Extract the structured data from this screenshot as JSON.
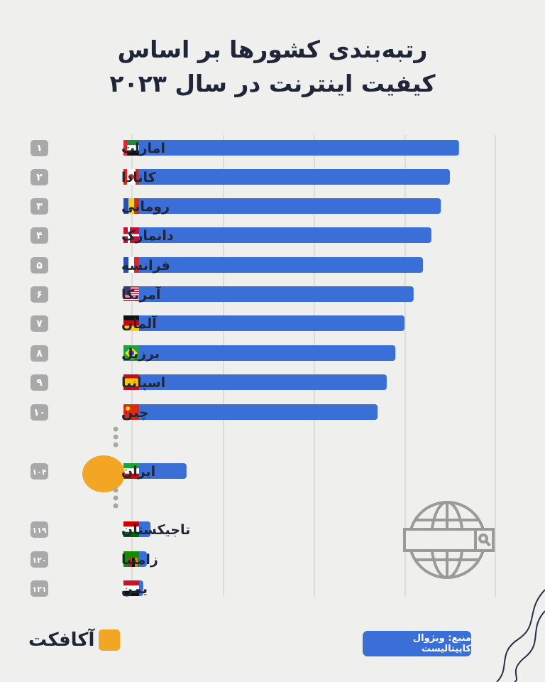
{
  "header": {
    "title_line1": "رتبه‌بندی کشورها بر اساس",
    "title_line2": "کیفیت اینترنت در سال ۲۰۲۳"
  },
  "footer": {
    "source": "منبع: ویژوال کاپیتالیست",
    "logo": "آکافکت"
  },
  "colors": {
    "bar": "#3a6fd8",
    "highlight": "#f2a623",
    "rank_badge": "#a9a9a9",
    "text": "#1f2638"
  },
  "chart_data": {
    "type": "bar",
    "orientation": "horizontal",
    "title": "رتبه‌بندی کشورها بر اساس کیفیت اینترنت در سال ۲۰۲۳",
    "grid": true,
    "value_note": "relative bar length, no axis values printed",
    "highlight": "ایران",
    "rows": [
      {
        "rank": "۱",
        "country": "امارات",
        "flag": "uae",
        "value": 90.0
      },
      {
        "rank": "۲",
        "country": "کانادا",
        "flag": "canada",
        "value": 87.5
      },
      {
        "rank": "۳",
        "country": "رومانی",
        "flag": "romania",
        "value": 85.0
      },
      {
        "rank": "۴",
        "country": "دانمارک",
        "flag": "denmark",
        "value": 82.4
      },
      {
        "rank": "۵",
        "country": "فرانسه",
        "flag": "france",
        "value": 80.1
      },
      {
        "rank": "۶",
        "country": "آمریکا",
        "flag": "usa",
        "value": 77.5
      },
      {
        "rank": "۷",
        "country": "آلمان",
        "flag": "germany",
        "value": 75.0
      },
      {
        "rank": "۸",
        "country": "برزیل",
        "flag": "brazil",
        "value": 72.5
      },
      {
        "rank": "۹",
        "country": "اسپانیا",
        "flag": "spain",
        "value": 70.1
      },
      {
        "rank": "۱۰",
        "country": "چین",
        "flag": "china",
        "value": 67.6
      },
      {
        "rank": "۱۰۴",
        "country": "ایران",
        "flag": "iran",
        "value": 15.0
      },
      {
        "rank": "۱۱۹",
        "country": "تاجیکستان",
        "flag": "tajikistan",
        "value": 5.1
      },
      {
        "rank": "۱۲۰",
        "country": "زامبیا",
        "flag": "zambia",
        "value": 4.1
      },
      {
        "rank": "۱۲۱",
        "country": "یمن",
        "flag": "yemen",
        "value": 3.1
      }
    ]
  }
}
